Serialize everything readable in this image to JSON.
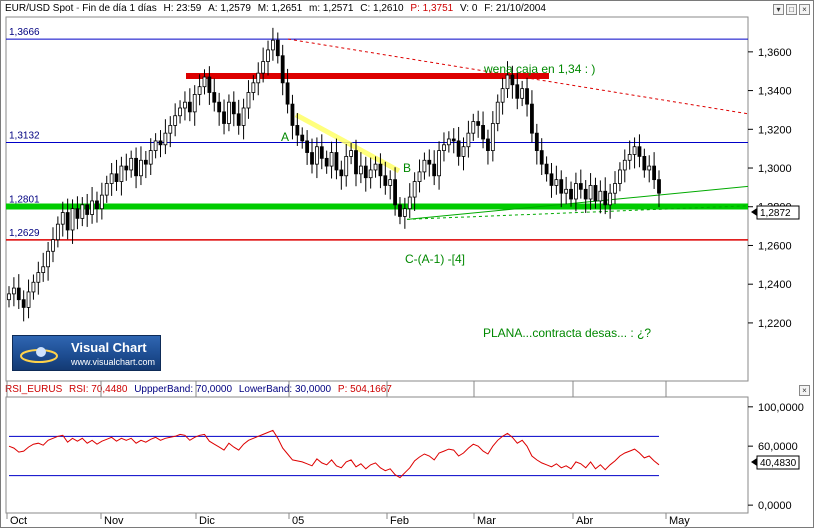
{
  "header": {
    "symbol": "EUR/USD Spot",
    "timeframe": "Fin de día 1 días",
    "h": "H: 23:59",
    "a": "A: 1,2579",
    "m": "M: 1,2651",
    "min": "m: 1,2571",
    "c": "C: 1,2610",
    "p": "P: 1,3751",
    "v": "V: 0",
    "f": "F: 21/10/2004"
  },
  "rsi_header": {
    "name": "RSI_EURUS",
    "rsi": "RSI: 70,4480",
    "upper": "UppperBand: 70,0000",
    "lower": "LowerBand: 30,0000",
    "p": "P: 504,1667"
  },
  "logo": {
    "title": "Visual Chart",
    "url": "www.visualchart.com"
  },
  "colors": {
    "price": "#000000",
    "horizontal_blue": "#0000c8",
    "red_support": "#dd0000",
    "green_support": "#00cc00",
    "rsi_line": "#dd0000",
    "annotation_green": "#008800"
  },
  "chart_data": [
    {
      "type": "candlestick",
      "title": "EUR/USD Spot",
      "x_ticks": [
        "Oct",
        "Nov",
        "Dic",
        "05",
        "Feb",
        "Mar",
        "Abr",
        "May"
      ],
      "ylim": [
        1.19,
        1.378
      ],
      "y_ticks": [
        "1,3600",
        "1,3400",
        "1,3200",
        "1,3000",
        "1,2800",
        "1,2600",
        "1,2400",
        "1,2200"
      ],
      "current_price_label": "1,2872",
      "horizontal_levels": [
        {
          "label": "1,3666",
          "value": 1.3666
        },
        {
          "label": "1,3132",
          "value": 1.3132
        },
        {
          "label": "1,2801",
          "value": 1.2801
        },
        {
          "label": "1,2629",
          "value": 1.2629
        }
      ],
      "annotations": {
        "box": "wena caja en 1,34 : )",
        "point_a": "A",
        "point_b": "B",
        "point_c": "C-(A-1) -[4]",
        "comment": "PLANA...contracta desas... : ¿?"
      },
      "closes": [
        1.235,
        1.238,
        1.232,
        1.228,
        1.236,
        1.241,
        1.246,
        1.249,
        1.257,
        1.263,
        1.271,
        1.277,
        1.268,
        1.279,
        1.274,
        1.281,
        1.276,
        1.283,
        1.279,
        1.286,
        1.292,
        1.297,
        1.293,
        1.301,
        1.299,
        1.305,
        1.296,
        1.304,
        1.302,
        1.309,
        1.314,
        1.312,
        1.318,
        1.322,
        1.327,
        1.331,
        1.334,
        1.329,
        1.338,
        1.342,
        1.347,
        1.339,
        1.334,
        1.329,
        1.323,
        1.334,
        1.328,
        1.322,
        1.331,
        1.339,
        1.344,
        1.349,
        1.355,
        1.361,
        1.366,
        1.358,
        1.344,
        1.333,
        1.322,
        1.317,
        1.314,
        1.308,
        1.302,
        1.311,
        1.305,
        1.301,
        1.308,
        1.299,
        1.296,
        1.306,
        1.309,
        1.297,
        1.301,
        1.295,
        1.299,
        1.302,
        1.296,
        1.291,
        1.294,
        1.281,
        1.275,
        1.279,
        1.285,
        1.293,
        1.298,
        1.304,
        1.302,
        1.296,
        1.309,
        1.312,
        1.315,
        1.314,
        1.306,
        1.311,
        1.318,
        1.324,
        1.322,
        1.315,
        1.309,
        1.323,
        1.334,
        1.341,
        1.348,
        1.343,
        1.336,
        1.341,
        1.333,
        1.318,
        1.309,
        1.302,
        1.297,
        1.291,
        1.294,
        1.287,
        1.289,
        1.284,
        1.292,
        1.289,
        1.284,
        1.291,
        1.283,
        1.288,
        1.281,
        1.287,
        1.292,
        1.299,
        1.304,
        1.307,
        1.311,
        1.306,
        1.299,
        1.301,
        1.294,
        1.287
      ],
      "rsi": {
        "ylim": [
          -8,
          110
        ],
        "upper_band": 70,
        "lower_band": 30,
        "current_label": "40,4830",
        "y_ticks": [
          "100,0000",
          "60,0000",
          "0,0000"
        ],
        "values": [
          60,
          58,
          54,
          55,
          59,
          62,
          63,
          61,
          66,
          68,
          70,
          71,
          64,
          68,
          65,
          68,
          63,
          66,
          62,
          65,
          67,
          69,
          65,
          68,
          66,
          68,
          63,
          66,
          64,
          67,
          69,
          66,
          68,
          69,
          70,
          72,
          71,
          66,
          69,
          71,
          72,
          65,
          62,
          59,
          56,
          63,
          59,
          56,
          62,
          66,
          68,
          70,
          72,
          74,
          76,
          68,
          58,
          52,
          46,
          45,
          44,
          42,
          40,
          47,
          43,
          41,
          46,
          40,
          38,
          44,
          46,
          39,
          42,
          37,
          41,
          43,
          38,
          35,
          37,
          31,
          28,
          33,
          38,
          45,
          49,
          52,
          50,
          46,
          53,
          55,
          57,
          56,
          50,
          53,
          58,
          62,
          60,
          55,
          52,
          60,
          66,
          70,
          73,
          69,
          63,
          66,
          60,
          50,
          46,
          43,
          41,
          39,
          42,
          38,
          40,
          37,
          44,
          42,
          38,
          44,
          37,
          41,
          36,
          41,
          45,
          50,
          53,
          55,
          57,
          53,
          48,
          50,
          45,
          41
        ]
      }
    }
  ]
}
